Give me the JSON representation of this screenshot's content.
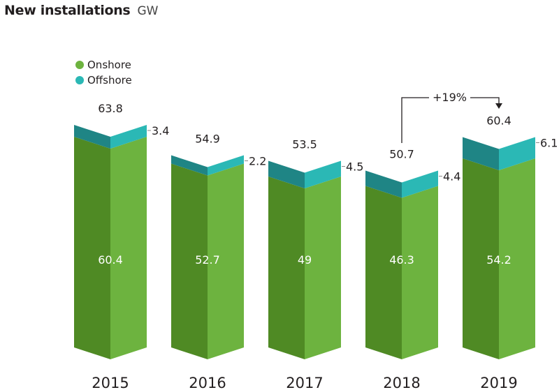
{
  "chart_data": {
    "type": "bar",
    "stacked": true,
    "title": "New installations",
    "unit": "GW",
    "categories": [
      "2015",
      "2016",
      "2017",
      "2018",
      "2019"
    ],
    "series": [
      {
        "name": "Onshore",
        "values": [
          60.4,
          52.7,
          49,
          46.3,
          54.2
        ],
        "color": "#6db33f",
        "shade": "#4f8a24"
      },
      {
        "name": "Offshore",
        "values": [
          3.4,
          2.2,
          4.5,
          4.4,
          6.1
        ],
        "color": "#2bb8b5",
        "shade": "#1f8585"
      }
    ],
    "totals": [
      63.8,
      54.9,
      53.5,
      50.7,
      60.4
    ],
    "annotation": {
      "label": "+19%",
      "from": "2018",
      "to": "2019"
    },
    "legend_position": "top-left",
    "grid": false
  },
  "legend": [
    {
      "label": "Onshore",
      "color": "#6db33f"
    },
    {
      "label": "Offshore",
      "color": "#2bb8b5"
    }
  ]
}
